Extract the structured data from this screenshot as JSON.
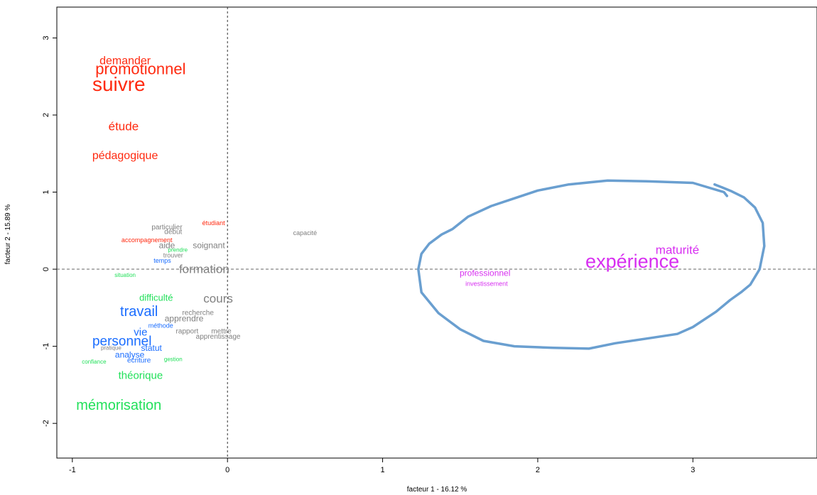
{
  "chart_data": {
    "type": "scatter",
    "xlabel": "facteur 1 - 16.12 %",
    "ylabel": "facteur 2 - 15.89 %",
    "xlim": [
      -1.1,
      3.8
    ],
    "ylim": [
      -2.45,
      3.4
    ],
    "x_ticks": [
      -1,
      0,
      1,
      2,
      3
    ],
    "y_ticks": [
      -2,
      -1,
      0,
      1,
      2,
      3
    ],
    "reference_lines": {
      "x": 0,
      "y": 0,
      "style": "dashed"
    },
    "grid": false,
    "colors": {
      "red": "#ff2a10",
      "gray": "#808080",
      "green": "#22e05a",
      "blue": "#1a6dff",
      "magenta": "#d72ff0",
      "outline": "#6a9fd0"
    },
    "points": [
      {
        "label": "demander",
        "x": -0.66,
        "y": 2.7,
        "size": 16,
        "color": "red"
      },
      {
        "label": "promotionnel",
        "x": -0.56,
        "y": 2.6,
        "size": 22,
        "color": "red"
      },
      {
        "label": "suivre",
        "x": -0.7,
        "y": 2.4,
        "size": 28,
        "color": "red"
      },
      {
        "label": "étude",
        "x": -0.67,
        "y": 1.85,
        "size": 17,
        "color": "red"
      },
      {
        "label": "pédagogique",
        "x": -0.66,
        "y": 1.47,
        "size": 16,
        "color": "red"
      },
      {
        "label": "étudiant",
        "x": -0.09,
        "y": 0.6,
        "size": 9,
        "color": "red"
      },
      {
        "label": "capacité",
        "x": 0.5,
        "y": 0.47,
        "size": 9,
        "color": "gray"
      },
      {
        "label": "particulier",
        "x": -0.39,
        "y": 0.54,
        "size": 10,
        "color": "gray"
      },
      {
        "label": "début",
        "x": -0.35,
        "y": 0.48,
        "size": 10,
        "color": "gray"
      },
      {
        "label": "accompagnement",
        "x": -0.52,
        "y": 0.38,
        "size": 9,
        "color": "red"
      },
      {
        "label": "aide",
        "x": -0.39,
        "y": 0.31,
        "size": 12,
        "color": "gray"
      },
      {
        "label": "soignant",
        "x": -0.12,
        "y": 0.31,
        "size": 12,
        "color": "gray"
      },
      {
        "label": "prendre",
        "x": -0.32,
        "y": 0.25,
        "size": 8,
        "color": "green"
      },
      {
        "label": "trouver",
        "x": -0.35,
        "y": 0.18,
        "size": 9,
        "color": "gray"
      },
      {
        "label": "temps",
        "x": -0.42,
        "y": 0.11,
        "size": 9,
        "color": "blue"
      },
      {
        "label": "formation",
        "x": -0.15,
        "y": 0.0,
        "size": 17,
        "color": "gray"
      },
      {
        "label": "situation",
        "x": -0.66,
        "y": -0.08,
        "size": 8,
        "color": "green"
      },
      {
        "label": "difficulté",
        "x": -0.46,
        "y": -0.37,
        "size": 13,
        "color": "green"
      },
      {
        "label": "cours",
        "x": -0.06,
        "y": -0.38,
        "size": 17,
        "color": "gray"
      },
      {
        "label": "travail",
        "x": -0.57,
        "y": -0.55,
        "size": 20,
        "color": "blue"
      },
      {
        "label": "recherche",
        "x": -0.19,
        "y": -0.57,
        "size": 10,
        "color": "gray"
      },
      {
        "label": "apprendre",
        "x": -0.28,
        "y": -0.64,
        "size": 12,
        "color": "gray"
      },
      {
        "label": "méthode",
        "x": -0.43,
        "y": -0.73,
        "size": 9,
        "color": "blue"
      },
      {
        "label": "vie",
        "x": -0.56,
        "y": -0.82,
        "size": 15,
        "color": "blue"
      },
      {
        "label": "rapport",
        "x": -0.26,
        "y": -0.81,
        "size": 10,
        "color": "gray"
      },
      {
        "label": "mettre",
        "x": -0.04,
        "y": -0.81,
        "size": 10,
        "color": "gray"
      },
      {
        "label": "apprentissage",
        "x": -0.06,
        "y": -0.88,
        "size": 10,
        "color": "gray"
      },
      {
        "label": "personnel",
        "x": -0.68,
        "y": -0.94,
        "size": 19,
        "color": "blue"
      },
      {
        "label": "pratique",
        "x": -0.75,
        "y": -1.02,
        "size": 8,
        "color": "gray"
      },
      {
        "label": "statut",
        "x": -0.49,
        "y": -1.02,
        "size": 12,
        "color": "blue"
      },
      {
        "label": "analyse",
        "x": -0.63,
        "y": -1.11,
        "size": 12,
        "color": "blue"
      },
      {
        "label": "confiance",
        "x": -0.86,
        "y": -1.2,
        "size": 8,
        "color": "green"
      },
      {
        "label": "écriture",
        "x": -0.57,
        "y": -1.19,
        "size": 10,
        "color": "blue"
      },
      {
        "label": "gestion",
        "x": -0.35,
        "y": -1.17,
        "size": 8,
        "color": "green"
      },
      {
        "label": "théorique",
        "x": -0.56,
        "y": -1.38,
        "size": 15,
        "color": "green"
      },
      {
        "label": "mémorisation",
        "x": -0.7,
        "y": -1.77,
        "size": 20,
        "color": "green"
      },
      {
        "label": "maturité",
        "x": 2.9,
        "y": 0.25,
        "size": 17,
        "color": "magenta"
      },
      {
        "label": "expérience",
        "x": 2.61,
        "y": 0.1,
        "size": 27,
        "color": "magenta"
      },
      {
        "label": "professionnel",
        "x": 1.66,
        "y": -0.05,
        "size": 12,
        "color": "magenta"
      },
      {
        "label": "investissement",
        "x": 1.67,
        "y": -0.19,
        "size": 9,
        "color": "magenta"
      }
    ],
    "outline": [
      [
        3.14,
        1.1
      ],
      [
        3.19,
        1.06
      ],
      [
        3.25,
        1.01
      ],
      [
        3.33,
        0.93
      ],
      [
        3.4,
        0.8
      ],
      [
        3.45,
        0.6
      ],
      [
        3.46,
        0.3
      ],
      [
        3.43,
        0.0
      ],
      [
        3.37,
        -0.2
      ],
      [
        3.31,
        -0.3
      ],
      [
        3.24,
        -0.4
      ],
      [
        3.15,
        -0.55
      ],
      [
        3.0,
        -0.75
      ],
      [
        2.9,
        -0.84
      ],
      [
        2.7,
        -0.9
      ],
      [
        2.5,
        -0.96
      ],
      [
        2.33,
        -1.03
      ],
      [
        2.1,
        -1.02
      ],
      [
        1.85,
        -1.0
      ],
      [
        1.65,
        -0.93
      ],
      [
        1.5,
        -0.78
      ],
      [
        1.36,
        -0.57
      ],
      [
        1.25,
        -0.3
      ],
      [
        1.23,
        0.0
      ],
      [
        1.25,
        0.2
      ],
      [
        1.3,
        0.33
      ],
      [
        1.38,
        0.45
      ],
      [
        1.45,
        0.52
      ],
      [
        1.55,
        0.68
      ],
      [
        1.7,
        0.82
      ],
      [
        1.85,
        0.92
      ],
      [
        2.0,
        1.02
      ],
      [
        2.2,
        1.1
      ],
      [
        2.45,
        1.15
      ],
      [
        2.7,
        1.14
      ],
      [
        3.0,
        1.12
      ],
      [
        3.2,
        1.0
      ],
      [
        3.22,
        0.95
      ]
    ]
  }
}
